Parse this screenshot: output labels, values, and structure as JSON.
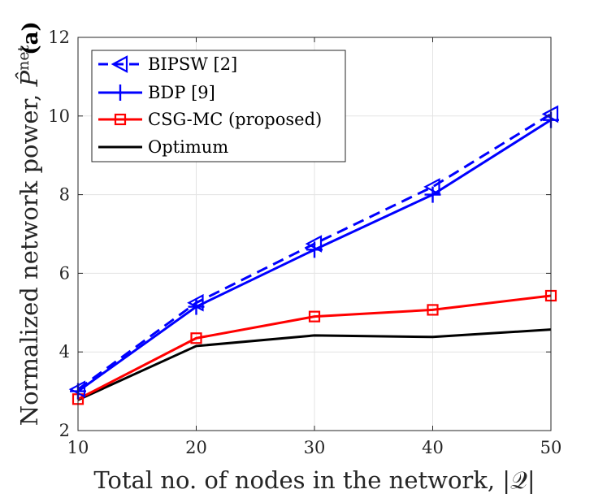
{
  "chart_data": {
    "type": "line",
    "panel_label": "(a)",
    "xlabel": "Total no. of nodes in the network, |𝒬|",
    "ylabel_main": "Normalized network power, ",
    "ylabel_symbol": "P̂",
    "ylabel_superscript": "net",
    "x": [
      10,
      20,
      30,
      40,
      50
    ],
    "xlim": [
      10,
      50
    ],
    "ylim": [
      2,
      12
    ],
    "xticks": [
      10,
      20,
      30,
      40,
      50
    ],
    "yticks": [
      2,
      4,
      6,
      8,
      10,
      12
    ],
    "grid": true,
    "legend_position": "top-left",
    "series": [
      {
        "name": "BIPSW [2]",
        "values": [
          3.05,
          5.25,
          6.75,
          8.2,
          10.05
        ],
        "color": "#0000ff",
        "dash": "dashed",
        "marker": "triangle-left"
      },
      {
        "name": "BDP [9]",
        "values": [
          3.0,
          5.15,
          6.6,
          8.0,
          9.9
        ],
        "color": "#0000ff",
        "dash": "solid",
        "marker": "plus"
      },
      {
        "name": "CSG-MC (proposed)",
        "values": [
          2.8,
          4.35,
          4.9,
          5.07,
          5.43
        ],
        "color": "#ff0000",
        "dash": "solid",
        "marker": "square"
      },
      {
        "name": "Optimum",
        "values": [
          2.78,
          4.15,
          4.42,
          4.38,
          4.57
        ],
        "color": "#000000",
        "dash": "solid",
        "marker": "none"
      }
    ]
  }
}
